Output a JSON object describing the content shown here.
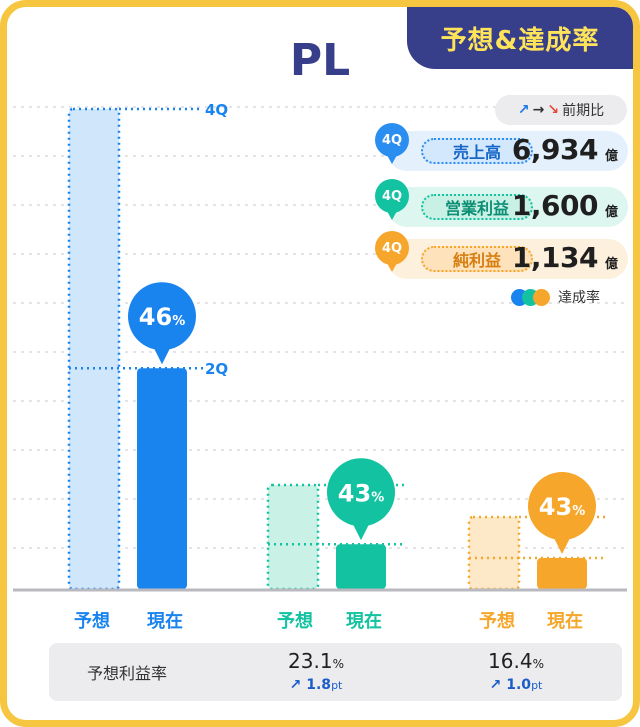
{
  "tag": "予想&達成率",
  "title": "PL",
  "legend_note": {
    "arrows": [
      "↗",
      "→",
      "↘"
    ],
    "label": "前期比"
  },
  "kpis": [
    {
      "badge": "4Q",
      "name": "売上高",
      "value": "6,934",
      "unit": "億"
    },
    {
      "badge": "4Q",
      "name": "営業利益",
      "value": "1,600",
      "unit": "億"
    },
    {
      "badge": "4Q",
      "name": "純利益",
      "value": "1,134",
      "unit": "億"
    }
  ],
  "achievement_legend": "達成率",
  "colors": {
    "frame": "#f6c640",
    "navy": "#383f8a",
    "blue": "#1a84ee",
    "teal": "#12c2a0",
    "orange": "#f6a62b"
  },
  "chart_data": {
    "type": "bar",
    "categories": [
      "予想",
      "現在",
      "予想",
      "現在",
      "予想",
      "現在"
    ],
    "groups": [
      {
        "forecast": 100,
        "current": 46,
        "achievement": "46",
        "pct_unit": "%",
        "forecast_label": "4Q",
        "current_label": "2Q",
        "color": "#1a84ee"
      },
      {
        "forecast": 100,
        "current": 43,
        "achievement": "43",
        "pct_unit": "%",
        "color": "#12c2a0"
      },
      {
        "forecast": 100,
        "current": 43,
        "achievement": "43",
        "pct_unit": "%",
        "color": "#f6a62b"
      }
    ],
    "grid": true
  },
  "footer": {
    "label": "予想利益率",
    "items": [
      {
        "value": "23.1",
        "unit": "%",
        "delta_arrow": "↗",
        "delta": "1.8",
        "delta_unit": "pt"
      },
      {
        "value": "16.4",
        "unit": "%",
        "delta_arrow": "↗",
        "delta": "1.0",
        "delta_unit": "pt"
      }
    ]
  }
}
